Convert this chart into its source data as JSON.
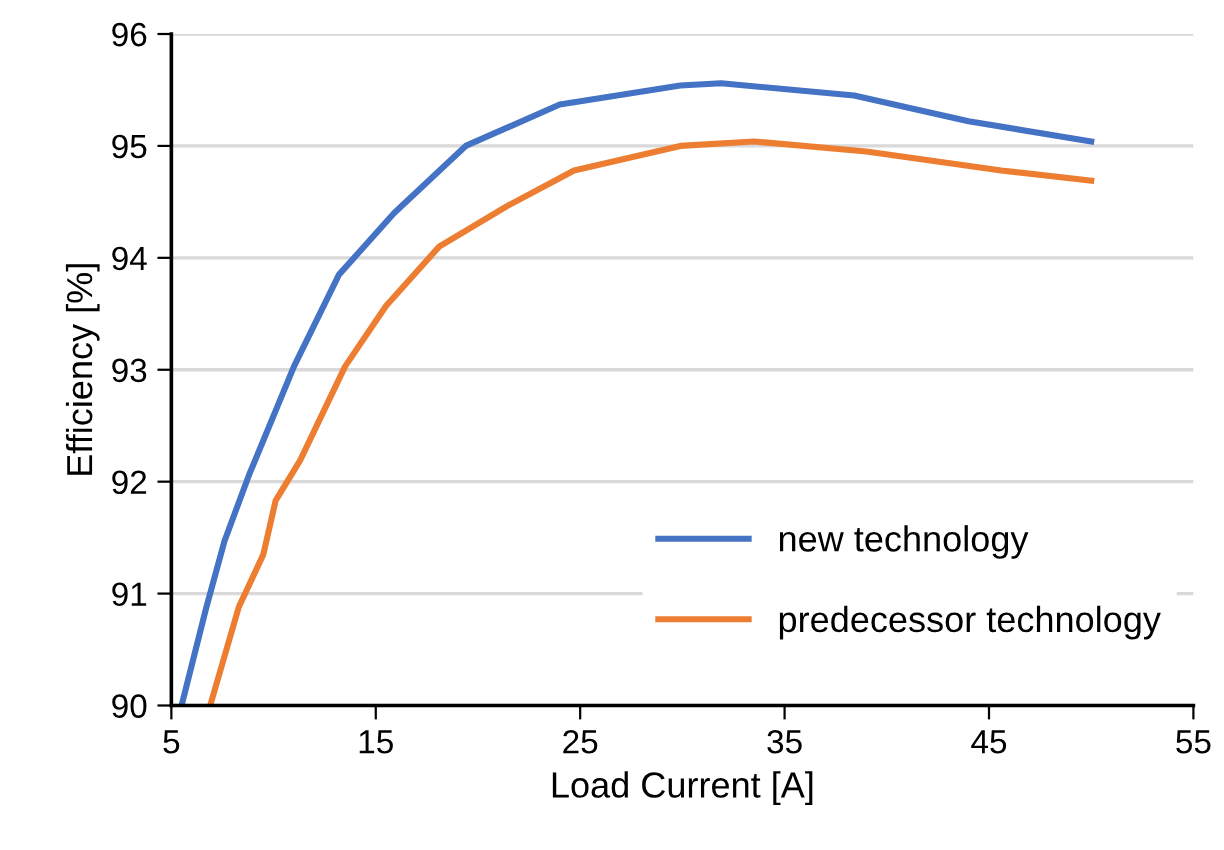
{
  "chart_data": {
    "type": "line",
    "xlabel": "Load Current [A]",
    "ylabel": "Efficiency [%]",
    "xlim": [
      5,
      55
    ],
    "xticks": [
      5,
      15,
      25,
      35,
      45,
      55
    ],
    "ylim": [
      90,
      96
    ],
    "yticks": [
      90,
      91,
      92,
      93,
      94,
      95,
      96
    ],
    "grid": "y",
    "legend": "bottom right",
    "marker": "none",
    "line_style": "solid",
    "series": [
      {
        "name": "new technology",
        "color": "#4472c4",
        "x": [
          5.5,
          6.7,
          7.6,
          8.8,
          11.0,
          13.2,
          15.9,
          19.4,
          24.0,
          29.9,
          31.9,
          38.4,
          44.0,
          50.0
        ],
        "values": [
          90.0,
          90.87,
          91.47,
          92.06,
          93.03,
          93.85,
          94.4,
          95.0,
          95.37,
          95.54,
          95.56,
          95.45,
          95.22,
          95.04
        ]
      },
      {
        "name": "predecessor technology",
        "color": "#ed7d31",
        "x": [
          6.9,
          8.3,
          9.5,
          10.1,
          11.3,
          13.5,
          15.5,
          18.1,
          21.4,
          24.7,
          29.9,
          33.5,
          39.0,
          45.6,
          50.0
        ],
        "values": [
          90.0,
          90.88,
          91.35,
          91.83,
          92.19,
          93.03,
          93.57,
          94.1,
          94.46,
          94.78,
          95.0,
          95.04,
          94.95,
          94.78,
          94.69
        ]
      }
    ]
  }
}
